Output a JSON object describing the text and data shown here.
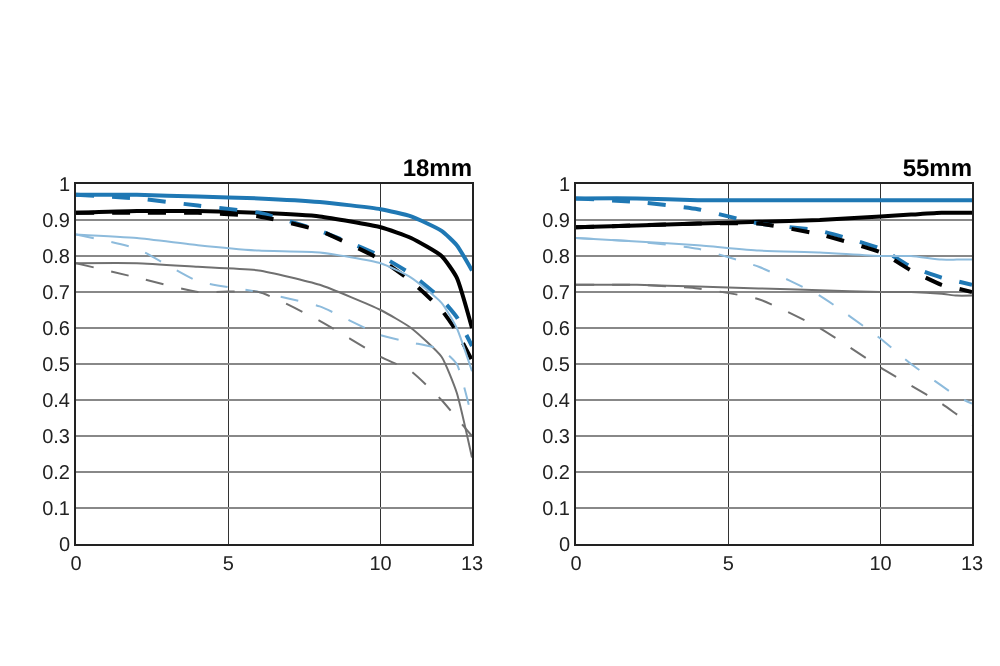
{
  "chart_data": [
    {
      "type": "line",
      "title": "18mm",
      "x": [
        0,
        2,
        4,
        6,
        8,
        10,
        11,
        12,
        12.5,
        13
      ],
      "xlim": [
        0,
        13
      ],
      "xticks": [
        0,
        5,
        10,
        13
      ],
      "ylim": [
        0,
        1
      ],
      "yticks": [
        0,
        0.1,
        0.2,
        0.3,
        0.4,
        0.5,
        0.6,
        0.7,
        0.8,
        0.9,
        1
      ],
      "grid": true,
      "marker": "none",
      "series": [
        {
          "color": "#1f78b4",
          "line_style": "solid",
          "values": [
            0.97,
            0.97,
            0.965,
            0.96,
            0.95,
            0.93,
            0.91,
            0.87,
            0.83,
            0.76
          ]
        },
        {
          "color": "#000000",
          "line_style": "solid",
          "values": [
            0.92,
            0.925,
            0.925,
            0.92,
            0.91,
            0.88,
            0.85,
            0.8,
            0.74,
            0.6
          ]
        },
        {
          "color": "#1f78b4",
          "line_style": "dashed",
          "values": [
            0.97,
            0.96,
            0.94,
            0.92,
            0.87,
            0.8,
            0.75,
            0.68,
            0.63,
            0.55
          ]
        },
        {
          "color": "#000000",
          "line_style": "dashed",
          "values": [
            0.92,
            0.92,
            0.92,
            0.91,
            0.87,
            0.79,
            0.73,
            0.65,
            0.59,
            0.51
          ]
        },
        {
          "color": "#8dbbdc",
          "line_style": "solid",
          "values": [
            0.86,
            0.85,
            0.83,
            0.815,
            0.81,
            0.78,
            0.74,
            0.67,
            0.6,
            0.48
          ]
        },
        {
          "color": "#707070",
          "line_style": "solid",
          "values": [
            0.78,
            0.78,
            0.77,
            0.76,
            0.72,
            0.65,
            0.6,
            0.52,
            0.42,
            0.24
          ]
        },
        {
          "color": "#8dbbdc",
          "line_style": "dashed",
          "values": [
            0.86,
            0.82,
            0.73,
            0.7,
            0.66,
            0.58,
            0.56,
            0.54,
            0.5,
            0.35
          ]
        },
        {
          "color": "#707070",
          "line_style": "dashed",
          "values": [
            0.78,
            0.74,
            0.7,
            0.7,
            0.62,
            0.52,
            0.48,
            0.4,
            0.35,
            0.3
          ]
        }
      ]
    },
    {
      "type": "line",
      "title": "55mm",
      "x": [
        0,
        2,
        4,
        6,
        8,
        10,
        11,
        12,
        12.5,
        13
      ],
      "xlim": [
        0,
        13
      ],
      "xticks": [
        0,
        5,
        10,
        13
      ],
      "ylim": [
        0,
        1
      ],
      "yticks": [
        0,
        0.1,
        0.2,
        0.3,
        0.4,
        0.5,
        0.6,
        0.7,
        0.8,
        0.9,
        1
      ],
      "grid": true,
      "marker": "none",
      "series": [
        {
          "color": "#1f78b4",
          "line_style": "solid",
          "values": [
            0.96,
            0.96,
            0.955,
            0.955,
            0.955,
            0.955,
            0.955,
            0.955,
            0.955,
            0.955
          ]
        },
        {
          "color": "#000000",
          "line_style": "solid",
          "values": [
            0.88,
            0.885,
            0.89,
            0.895,
            0.9,
            0.91,
            0.915,
            0.92,
            0.92,
            0.92
          ]
        },
        {
          "color": "#1f78b4",
          "line_style": "dashed",
          "values": [
            0.96,
            0.95,
            0.93,
            0.89,
            0.87,
            0.82,
            0.77,
            0.74,
            0.73,
            0.72
          ]
        },
        {
          "color": "#000000",
          "line_style": "dashed",
          "values": [
            0.88,
            0.885,
            0.89,
            0.89,
            0.86,
            0.81,
            0.76,
            0.72,
            0.71,
            0.7
          ]
        },
        {
          "color": "#8dbbdc",
          "line_style": "solid",
          "values": [
            0.85,
            0.84,
            0.83,
            0.815,
            0.81,
            0.8,
            0.8,
            0.79,
            0.79,
            0.79
          ]
        },
        {
          "color": "#707070",
          "line_style": "solid",
          "values": [
            0.72,
            0.72,
            0.715,
            0.71,
            0.705,
            0.7,
            0.7,
            0.695,
            0.69,
            0.69
          ]
        },
        {
          "color": "#8dbbdc",
          "line_style": "dashed",
          "values": [
            0.85,
            0.84,
            0.82,
            0.77,
            0.69,
            0.57,
            0.5,
            0.44,
            0.41,
            0.39
          ]
        },
        {
          "color": "#707070",
          "line_style": "dashed",
          "values": [
            0.72,
            0.72,
            0.71,
            0.68,
            0.6,
            0.49,
            0.44,
            0.39,
            0.36,
            0.33
          ]
        }
      ]
    }
  ]
}
